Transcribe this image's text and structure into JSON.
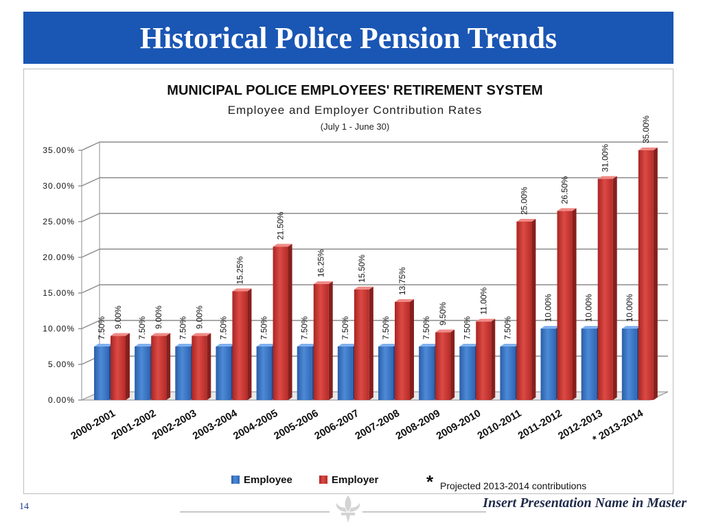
{
  "slide": {
    "title": "Historical Police Pension Trends",
    "slide_number": "14",
    "footer": "Insert Presentation Name in Master"
  },
  "chart_data": {
    "type": "bar",
    "title": "MUNICIPAL POLICE EMPLOYEES' RETIREMENT SYSTEM",
    "subtitle": "Employee and Employer Contribution Rates",
    "subtitle2": "(July 1 - June 30)",
    "categories": [
      "2000-2001",
      "2001-2002",
      "2002-2003",
      "2003-2004",
      "2004-2005",
      "2005-2006",
      "2006-2007",
      "2007-2008",
      "2008-2009",
      "2009-2010",
      "2010-2011",
      "2011-2012",
      "2012-2013",
      "2013-2014"
    ],
    "category_marker": [
      "",
      "",
      "",
      "",
      "",
      "",
      "",
      "",
      "",
      "",
      "",
      "",
      "",
      "*"
    ],
    "series": [
      {
        "name": "Employee",
        "values": [
          7.5,
          7.5,
          7.5,
          7.5,
          7.5,
          7.5,
          7.5,
          7.5,
          7.5,
          7.5,
          7.5,
          10.0,
          10.0,
          10.0
        ],
        "labels": [
          "7.50%",
          "7.50%",
          "7.50%",
          "7.50%",
          "7.50%",
          "7.50%",
          "7.50%",
          "7.50%",
          "7.50%",
          "7.50%",
          "7.50%",
          "10.00%",
          "10.00%",
          "10.00%"
        ]
      },
      {
        "name": "Employer",
        "values": [
          9.0,
          9.0,
          9.0,
          15.25,
          21.5,
          16.25,
          15.5,
          13.75,
          9.5,
          11.0,
          25.0,
          26.5,
          31.0,
          35.0
        ],
        "labels": [
          "9.00%",
          "9.00%",
          "9.00%",
          "15.25%",
          "21.50%",
          "16.25%",
          "15.50%",
          "13.75%",
          "9.50%",
          "11.00%",
          "25.00%",
          "26.50%",
          "31.00%",
          "35.00%"
        ]
      }
    ],
    "y_ticks": [
      "0.00%",
      "5.00%",
      "10.00%",
      "15.00%",
      "20.00%",
      "25.00%",
      "30.00%",
      "35.00%"
    ],
    "ylim": [
      0,
      35
    ],
    "grid": true,
    "legend_position": "bottom",
    "footnote_marker": "*",
    "footnote": "Projected 2013-2014 contributions",
    "colors": {
      "Employee": "#3a74c4",
      "Employer": "#c0322f",
      "grid": "#8c8c8c"
    }
  }
}
